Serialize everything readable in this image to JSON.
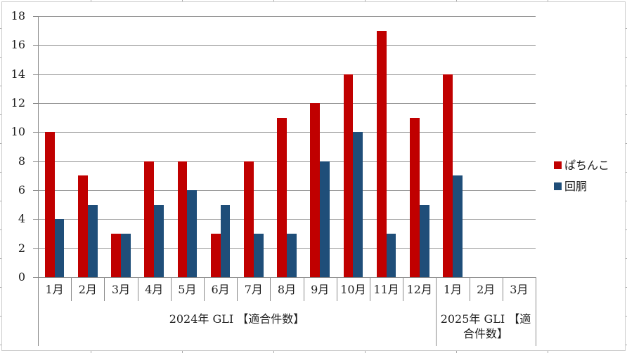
{
  "chart_data": {
    "type": "bar",
    "title": "",
    "xlabel": "",
    "ylabel": "",
    "categories": [
      "1月",
      "2月",
      "3月",
      "4月",
      "5月",
      "6月",
      "7月",
      "8月",
      "9月",
      "10月",
      "11月",
      "12月",
      "1月",
      "2月",
      "3月"
    ],
    "group_labels": [
      {
        "label": "2024年 GLI 【適合件数】",
        "span": 12
      },
      {
        "label": "2025年 GLI 【適合件数】",
        "span": 3
      }
    ],
    "series": [
      {
        "name": "ぱちんこ",
        "color": "#C00000",
        "values": [
          10,
          7,
          3,
          8,
          8,
          3,
          8,
          11,
          12,
          14,
          17,
          11,
          14,
          0,
          0
        ]
      },
      {
        "name": "回胴",
        "color": "#1F4E79",
        "values": [
          4,
          5,
          3,
          5,
          6,
          5,
          3,
          3,
          8,
          10,
          3,
          5,
          7,
          0,
          0
        ]
      }
    ],
    "ylim": [
      0,
      18
    ],
    "ytick_step": 2,
    "grid": true,
    "legend_position": "right",
    "colors": {
      "grid_line": "#999999",
      "axis_line": "#8a8a8a",
      "text": "#1f1f1f",
      "frame_border": "#cdcdcd"
    }
  }
}
